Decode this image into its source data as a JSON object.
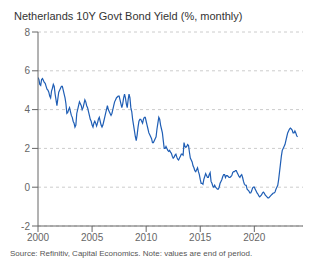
{
  "chart_data": {
    "type": "line",
    "title": "Netherlands 10Y Govt Bond Yield (%, monthly)",
    "annotations": [
      "Source: Refinitiv, Capital Economics. Note: values are end of period."
    ],
    "color": "#1f5eb5",
    "grid": "y",
    "xlim": [
      2000.0,
      2024.5
    ],
    "xticks": [
      2000,
      2005,
      2010,
      2015,
      2020
    ],
    "ylim": [
      -2,
      8
    ],
    "yticks": [
      -2,
      0,
      2,
      4,
      6,
      8
    ],
    "x": [
      2000.0,
      2000.083,
      2000.167,
      2000.25,
      2000.333,
      2000.417,
      2000.5,
      2000.583,
      2000.667,
      2000.75,
      2000.833,
      2000.917,
      2001.0,
      2001.083,
      2001.167,
      2001.25,
      2001.333,
      2001.417,
      2001.5,
      2001.583,
      2001.667,
      2001.75,
      2001.833,
      2001.917,
      2002.0,
      2002.083,
      2002.167,
      2002.25,
      2002.333,
      2002.417,
      2002.5,
      2002.583,
      2002.667,
      2002.75,
      2002.833,
      2002.917,
      2003.0,
      2003.083,
      2003.167,
      2003.25,
      2003.333,
      2003.417,
      2003.5,
      2003.583,
      2003.667,
      2003.75,
      2003.833,
      2003.917,
      2004.0,
      2004.083,
      2004.167,
      2004.25,
      2004.333,
      2004.417,
      2004.5,
      2004.583,
      2004.667,
      2004.75,
      2004.833,
      2004.917,
      2005.0,
      2005.083,
      2005.167,
      2005.25,
      2005.333,
      2005.417,
      2005.5,
      2005.583,
      2005.667,
      2005.75,
      2005.833,
      2005.917,
      2006.0,
      2006.083,
      2006.167,
      2006.25,
      2006.333,
      2006.417,
      2006.5,
      2006.583,
      2006.667,
      2006.75,
      2006.833,
      2006.917,
      2007.0,
      2007.083,
      2007.167,
      2007.25,
      2007.333,
      2007.417,
      2007.5,
      2007.583,
      2007.667,
      2007.75,
      2007.833,
      2007.917,
      2008.0,
      2008.083,
      2008.167,
      2008.25,
      2008.333,
      2008.417,
      2008.5,
      2008.583,
      2008.667,
      2008.75,
      2008.833,
      2008.917,
      2009.0,
      2009.083,
      2009.167,
      2009.25,
      2009.333,
      2009.417,
      2009.5,
      2009.583,
      2009.667,
      2009.75,
      2009.833,
      2009.917,
      2010.0,
      2010.083,
      2010.167,
      2010.25,
      2010.333,
      2010.417,
      2010.5,
      2010.583,
      2010.667,
      2010.75,
      2010.833,
      2010.917,
      2011.0,
      2011.083,
      2011.167,
      2011.25,
      2011.333,
      2011.417,
      2011.5,
      2011.583,
      2011.667,
      2011.75,
      2011.833,
      2011.917,
      2012.0,
      2012.083,
      2012.167,
      2012.25,
      2012.333,
      2012.417,
      2012.5,
      2012.583,
      2012.667,
      2012.75,
      2012.833,
      2012.917,
      2013.0,
      2013.083,
      2013.167,
      2013.25,
      2013.333,
      2013.417,
      2013.5,
      2013.583,
      2013.667,
      2013.75,
      2013.833,
      2013.917,
      2014.0,
      2014.083,
      2014.167,
      2014.25,
      2014.333,
      2014.417,
      2014.5,
      2014.583,
      2014.667,
      2014.75,
      2014.833,
      2014.917,
      2015.0,
      2015.083,
      2015.167,
      2015.25,
      2015.333,
      2015.417,
      2015.5,
      2015.583,
      2015.667,
      2015.75,
      2015.833,
      2015.917,
      2016.0,
      2016.083,
      2016.167,
      2016.25,
      2016.333,
      2016.417,
      2016.5,
      2016.583,
      2016.667,
      2016.75,
      2016.833,
      2016.917,
      2017.0,
      2017.083,
      2017.167,
      2017.25,
      2017.333,
      2017.417,
      2017.5,
      2017.583,
      2017.667,
      2017.75,
      2017.833,
      2017.917,
      2018.0,
      2018.083,
      2018.167,
      2018.25,
      2018.333,
      2018.417,
      2018.5,
      2018.583,
      2018.667,
      2018.75,
      2018.833,
      2018.917,
      2019.0,
      2019.083,
      2019.167,
      2019.25,
      2019.333,
      2019.417,
      2019.5,
      2019.583,
      2019.667,
      2019.75,
      2019.833,
      2019.917,
      2020.0,
      2020.083,
      2020.167,
      2020.25,
      2020.333,
      2020.417,
      2020.5,
      2020.583,
      2020.667,
      2020.75,
      2020.833,
      2020.917,
      2021.0,
      2021.083,
      2021.167,
      2021.25,
      2021.333,
      2021.417,
      2021.5,
      2021.583,
      2021.667,
      2021.75,
      2021.833,
      2021.917,
      2022.0,
      2022.083,
      2022.167,
      2022.25,
      2022.333,
      2022.417,
      2022.5,
      2022.583,
      2022.667,
      2022.75,
      2022.833,
      2022.917,
      2023.0,
      2023.083,
      2023.167,
      2023.25,
      2023.333,
      2023.417,
      2023.5,
      2023.583,
      2023.667,
      2023.75,
      2023.833,
      2023.917,
      2024.0
    ],
    "values": [
      5.65,
      5.55,
      5.3,
      5.25,
      5.55,
      5.6,
      5.5,
      5.4,
      5.35,
      5.2,
      5.05,
      5.0,
      4.9,
      4.7,
      4.6,
      4.95,
      5.1,
      5.3,
      5.2,
      4.8,
      4.5,
      4.2,
      4.55,
      4.9,
      5.0,
      5.1,
      5.2,
      5.2,
      5.0,
      4.8,
      4.6,
      4.3,
      3.8,
      3.85,
      4.0,
      4.1,
      3.9,
      3.7,
      3.6,
      3.4,
      3.3,
      3.1,
      3.2,
      3.8,
      4.0,
      4.2,
      4.4,
      4.3,
      4.2,
      4.0,
      4.1,
      4.3,
      4.5,
      4.4,
      4.2,
      4.1,
      3.9,
      3.7,
      3.5,
      3.4,
      3.2,
      3.1,
      3.3,
      3.4,
      3.3,
      3.15,
      3.3,
      3.5,
      3.6,
      3.4,
      3.2,
      3.1,
      3.2,
      3.4,
      3.6,
      3.8,
      4.0,
      4.2,
      4.0,
      3.9,
      3.8,
      3.7,
      3.8,
      4.0,
      4.2,
      4.4,
      4.5,
      4.6,
      4.65,
      4.7,
      4.7,
      4.5,
      4.3,
      4.1,
      4.3,
      4.6,
      4.8,
      4.6,
      4.3,
      4.1,
      4.5,
      4.8,
      4.6,
      4.1,
      3.9,
      3.5,
      3.2,
      2.9,
      2.6,
      2.4,
      2.7,
      3.1,
      3.4,
      3.5,
      3.5,
      3.4,
      3.3,
      3.5,
      3.6,
      3.6,
      3.4,
      3.2,
      3.0,
      2.8,
      2.7,
      2.6,
      2.5,
      2.3,
      2.3,
      2.4,
      2.5,
      2.6,
      3.0,
      3.3,
      3.6,
      3.5,
      3.2,
      3.0,
      2.8,
      2.4,
      2.0,
      2.0,
      2.1,
      2.0,
      1.9,
      1.85,
      1.9,
      1.8,
      1.75,
      1.6,
      1.5,
      1.55,
      1.65,
      1.7,
      1.55,
      1.45,
      1.4,
      1.5,
      1.6,
      1.7,
      1.7,
      1.65,
      2.3,
      2.1,
      2.05,
      2.1,
      2.2,
      2.15,
      1.8,
      1.5,
      1.4,
      1.3,
      1.1,
      1.0,
      0.85,
      0.8,
      0.9,
      1.0,
      0.8,
      0.65,
      0.4,
      0.2,
      0.2,
      0.15,
      0.4,
      0.55,
      0.7,
      0.6,
      0.5,
      0.5,
      0.65,
      0.75,
      0.3,
      0.2,
      0.05,
      0.0,
      0.1,
      0.0,
      -0.05,
      -0.1,
      -0.1,
      0.0,
      0.2,
      0.3,
      0.4,
      0.55,
      0.65,
      0.65,
      0.5,
      0.6,
      0.6,
      0.55,
      0.5,
      0.5,
      0.55,
      0.6,
      0.75,
      0.8,
      0.8,
      0.85,
      0.85,
      0.75,
      0.65,
      0.55,
      0.5,
      0.6,
      0.65,
      0.5,
      0.3,
      0.15,
      0.1,
      0.1,
      -0.1,
      -0.15,
      -0.2,
      -0.3,
      -0.3,
      -0.2,
      -0.05,
      0.0,
      0.0,
      -0.1,
      -0.2,
      -0.3,
      -0.35,
      -0.45,
      -0.5,
      -0.45,
      -0.4,
      -0.3,
      -0.25,
      -0.3,
      -0.4,
      -0.45,
      -0.5,
      -0.55,
      -0.55,
      -0.5,
      -0.45,
      -0.4,
      -0.35,
      -0.3,
      -0.3,
      -0.25,
      -0.1,
      0.0,
      0.1,
      0.4,
      0.8,
      1.2,
      1.6,
      1.9,
      2.0,
      2.1,
      2.2,
      2.4,
      2.6,
      2.8,
      2.9,
      3.0,
      3.05,
      3.0,
      2.95,
      2.8,
      2.8,
      2.9,
      2.8,
      2.65,
      2.6
    ]
  }
}
